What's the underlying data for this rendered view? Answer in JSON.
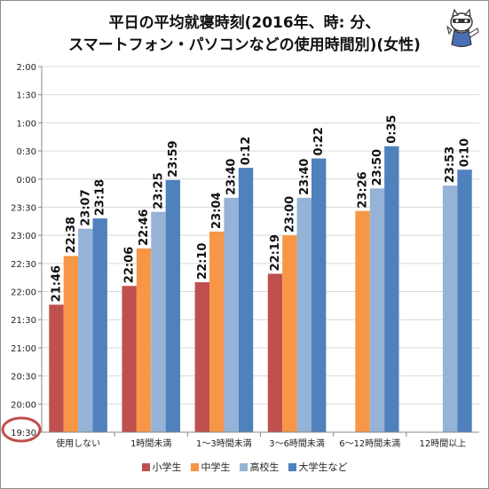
{
  "title_line1": "平日の平均就寝時刻(2016年、時: 分、",
  "title_line2": "スマートフォン・パソコンなどの使用時間別)(女性)",
  "colors": {
    "frame": "#8c8c8c",
    "grid": "#d9d9d9",
    "highlight_circle": "#c0504d"
  },
  "chart_data": {
    "type": "bar",
    "title": "平日の平均就寝時刻(2016年、時: 分、スマートフォン・パソコンなどの使用時間別)(女性)",
    "categories": [
      "使用しない",
      "1時間未満",
      "1～3時間未満",
      "3～6時間未満",
      "6～12時間未満",
      "12時間以上"
    ],
    "yticks": [
      "19:30",
      "20:00",
      "20:30",
      "21:00",
      "21:30",
      "22:00",
      "22:30",
      "23:00",
      "23:30",
      "0:00",
      "0:30",
      "1:00",
      "1:30",
      "2:00"
    ],
    "ylim_minutes_after_1930": [
      0,
      390
    ],
    "grid": true,
    "legend_position": "bottom",
    "series": [
      {
        "name": "小学生",
        "color": "#c0504d",
        "values": [
          136,
          156,
          160,
          169,
          null,
          null
        ],
        "labels": [
          "21:46",
          "22:06",
          "22:10",
          "22:19",
          "",
          ""
        ]
      },
      {
        "name": "中学生",
        "color": "#f79646",
        "values": [
          188,
          196,
          214,
          210,
          236,
          null
        ],
        "labels": [
          "22:38",
          "22:46",
          "23:04",
          "23:00",
          "23:26",
          ""
        ]
      },
      {
        "name": "高校生",
        "color": "#95b3d7",
        "values": [
          217,
          235,
          250,
          250,
          260,
          263
        ],
        "labels": [
          "23:07",
          "23:25",
          "23:40",
          "23:40",
          "23:50",
          "23:53"
        ]
      },
      {
        "name": "大学生など",
        "color": "#4f81bd",
        "values": [
          228,
          269,
          282,
          292,
          305,
          280
        ],
        "labels": [
          "23:18",
          "23:59",
          "0:12",
          "0:22",
          "0:35",
          "0:10"
        ]
      }
    ]
  }
}
